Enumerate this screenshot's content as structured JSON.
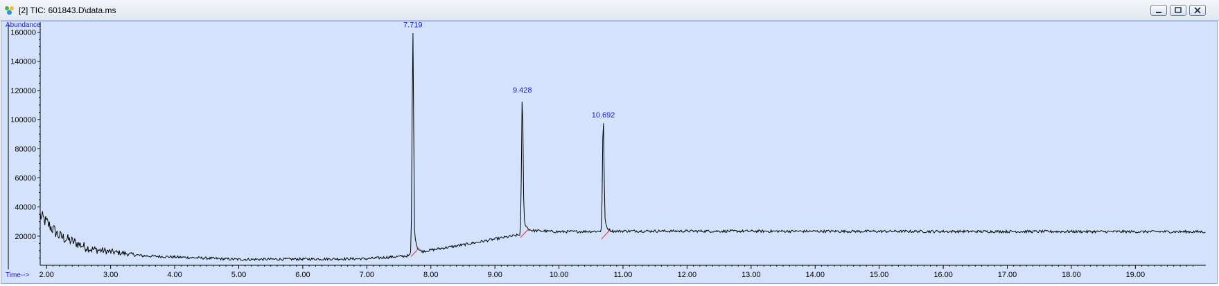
{
  "window": {
    "title": "[2] TIC: 601843.D\\data.ms",
    "icon": "chromatogram-app-icon",
    "buttons": [
      "minimize",
      "maximize",
      "close"
    ]
  },
  "colors": {
    "plot_background": "#d4e3fb",
    "trace": "#000000",
    "label": "#1a1acc",
    "baseline": "#e03030"
  },
  "chart_data": {
    "type": "line",
    "ylabel": "Abundance",
    "xlabel": "Time-->",
    "xlim": [
      1.9,
      20.1
    ],
    "ylim": [
      0,
      165000
    ],
    "xticks": [
      "2.00",
      "3.00",
      "4.00",
      "5.00",
      "6.00",
      "7.00",
      "8.00",
      "9.00",
      "10.00",
      "11.00",
      "12.00",
      "13.00",
      "14.00",
      "15.00",
      "16.00",
      "17.00",
      "18.00",
      "19.00"
    ],
    "yticks": [
      "20000",
      "40000",
      "60000",
      "80000",
      "100000",
      "120000",
      "140000",
      "160000"
    ],
    "peaks": [
      {
        "label": "7.719",
        "rt": 7.719,
        "apex": 162000,
        "base": 9000
      },
      {
        "label": "9.428",
        "rt": 9.428,
        "apex": 117000,
        "base": 22000
      },
      {
        "label": "10.692",
        "rt": 10.692,
        "apex": 100000,
        "base": 21000
      }
    ],
    "baseline_points": [
      {
        "x": 1.9,
        "y": 34000
      },
      {
        "x": 2.2,
        "y": 20000
      },
      {
        "x": 2.7,
        "y": 11000
      },
      {
        "x": 3.5,
        "y": 6500
      },
      {
        "x": 5.0,
        "y": 4000
      },
      {
        "x": 7.0,
        "y": 4500
      },
      {
        "x": 7.65,
        "y": 6500
      },
      {
        "x": 7.8,
        "y": 9000
      },
      {
        "x": 8.5,
        "y": 14000
      },
      {
        "x": 9.0,
        "y": 18000
      },
      {
        "x": 9.4,
        "y": 21000
      },
      {
        "x": 9.5,
        "y": 24000
      },
      {
        "x": 10.0,
        "y": 23000
      },
      {
        "x": 11.0,
        "y": 23500
      },
      {
        "x": 20.1,
        "y": 23000
      }
    ]
  }
}
